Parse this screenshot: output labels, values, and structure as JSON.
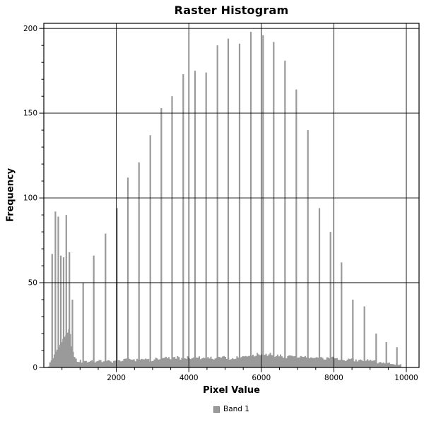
{
  "chart_data": {
    "type": "bar",
    "title": "Raster Histogram",
    "xlabel": "Pixel Value",
    "ylabel": "Frequency",
    "legend": [
      {
        "label": "Band 1",
        "color": "#9a9a9a"
      }
    ],
    "legend_position": "bottom-center",
    "bar_color": "#9a9a9a",
    "grid": true,
    "grid_color": "#000000",
    "axis_color": "#000000",
    "background_color": "#ffffff",
    "xlim": [
      0,
      10350
    ],
    "ylim": [
      0,
      203
    ],
    "x_major_ticks": [
      2000,
      4000,
      6000,
      8000,
      10000
    ],
    "x_minor_step": 500,
    "y_major_ticks": [
      0,
      50,
      100,
      150,
      200
    ],
    "y_minor_step": 10,
    "spikes": [
      [
        230,
        67
      ],
      [
        320,
        92
      ],
      [
        400,
        89
      ],
      [
        470,
        66
      ],
      [
        545,
        65
      ],
      [
        620,
        90
      ],
      [
        705,
        68
      ],
      [
        790,
        40
      ],
      [
        1086,
        50
      ],
      [
        1378,
        66
      ],
      [
        1702,
        79
      ],
      [
        2020,
        94
      ],
      [
        2320,
        112
      ],
      [
        2625,
        121
      ],
      [
        2937,
        137
      ],
      [
        3241,
        153
      ],
      [
        3537,
        160
      ],
      [
        3845,
        173
      ],
      [
        4171,
        175
      ],
      [
        4477,
        174
      ],
      [
        4789,
        190
      ],
      [
        5087,
        194
      ],
      [
        5399,
        191
      ],
      [
        5711,
        198
      ],
      [
        6048,
        196
      ],
      [
        6340,
        192
      ],
      [
        6652,
        181
      ],
      [
        6964,
        164
      ],
      [
        7284,
        140
      ],
      [
        7601,
        94
      ],
      [
        7907,
        80
      ],
      [
        8211,
        62
      ],
      [
        8523,
        40
      ],
      [
        8843,
        36
      ],
      [
        9166,
        20
      ],
      [
        9447,
        15
      ],
      [
        9739,
        12
      ]
    ],
    "noise_profile": [
      [
        110,
        1
      ],
      [
        150,
        3
      ],
      [
        200,
        5
      ],
      [
        250,
        7
      ],
      [
        300,
        9
      ],
      [
        350,
        11
      ],
      [
        400,
        13
      ],
      [
        450,
        14
      ],
      [
        500,
        16
      ],
      [
        550,
        18
      ],
      [
        600,
        20
      ],
      [
        650,
        22
      ],
      [
        690,
        22
      ],
      [
        720,
        18
      ],
      [
        750,
        13
      ],
      [
        780,
        10
      ],
      [
        810,
        7
      ],
      [
        850,
        5
      ],
      [
        900,
        4
      ],
      [
        1000,
        4
      ],
      [
        1100,
        3
      ],
      [
        1250,
        4
      ],
      [
        1400,
        3
      ],
      [
        1550,
        4
      ],
      [
        1700,
        4
      ],
      [
        1850,
        3
      ],
      [
        2000,
        5
      ],
      [
        2150,
        4
      ],
      [
        2300,
        5
      ],
      [
        2450,
        4
      ],
      [
        2600,
        5
      ],
      [
        2750,
        5
      ],
      [
        2900,
        4
      ],
      [
        3050,
        5
      ],
      [
        3200,
        5
      ],
      [
        3350,
        6
      ],
      [
        3500,
        5
      ],
      [
        3650,
        6
      ],
      [
        3800,
        5
      ],
      [
        3950,
        6
      ],
      [
        4100,
        5
      ],
      [
        4250,
        6
      ],
      [
        4400,
        5
      ],
      [
        4550,
        6
      ],
      [
        4700,
        5
      ],
      [
        4850,
        6
      ],
      [
        5000,
        6
      ],
      [
        5150,
        5
      ],
      [
        5300,
        6
      ],
      [
        5450,
        6
      ],
      [
        5600,
        7
      ],
      [
        5750,
        7
      ],
      [
        5900,
        8
      ],
      [
        6050,
        7
      ],
      [
        6200,
        8
      ],
      [
        6350,
        7
      ],
      [
        6500,
        7
      ],
      [
        6650,
        6
      ],
      [
        6800,
        7
      ],
      [
        6950,
        6
      ],
      [
        7100,
        6
      ],
      [
        7250,
        6
      ],
      [
        7400,
        5
      ],
      [
        7550,
        6
      ],
      [
        7700,
        5
      ],
      [
        7850,
        6
      ],
      [
        8000,
        6
      ],
      [
        8150,
        5
      ],
      [
        8300,
        4
      ],
      [
        8450,
        5
      ],
      [
        8600,
        4
      ],
      [
        8750,
        4
      ],
      [
        8900,
        4
      ],
      [
        9050,
        4
      ],
      [
        9200,
        3
      ],
      [
        9350,
        3
      ],
      [
        9500,
        3
      ],
      [
        9650,
        2
      ],
      [
        9800,
        2
      ],
      [
        9860,
        1
      ]
    ]
  }
}
